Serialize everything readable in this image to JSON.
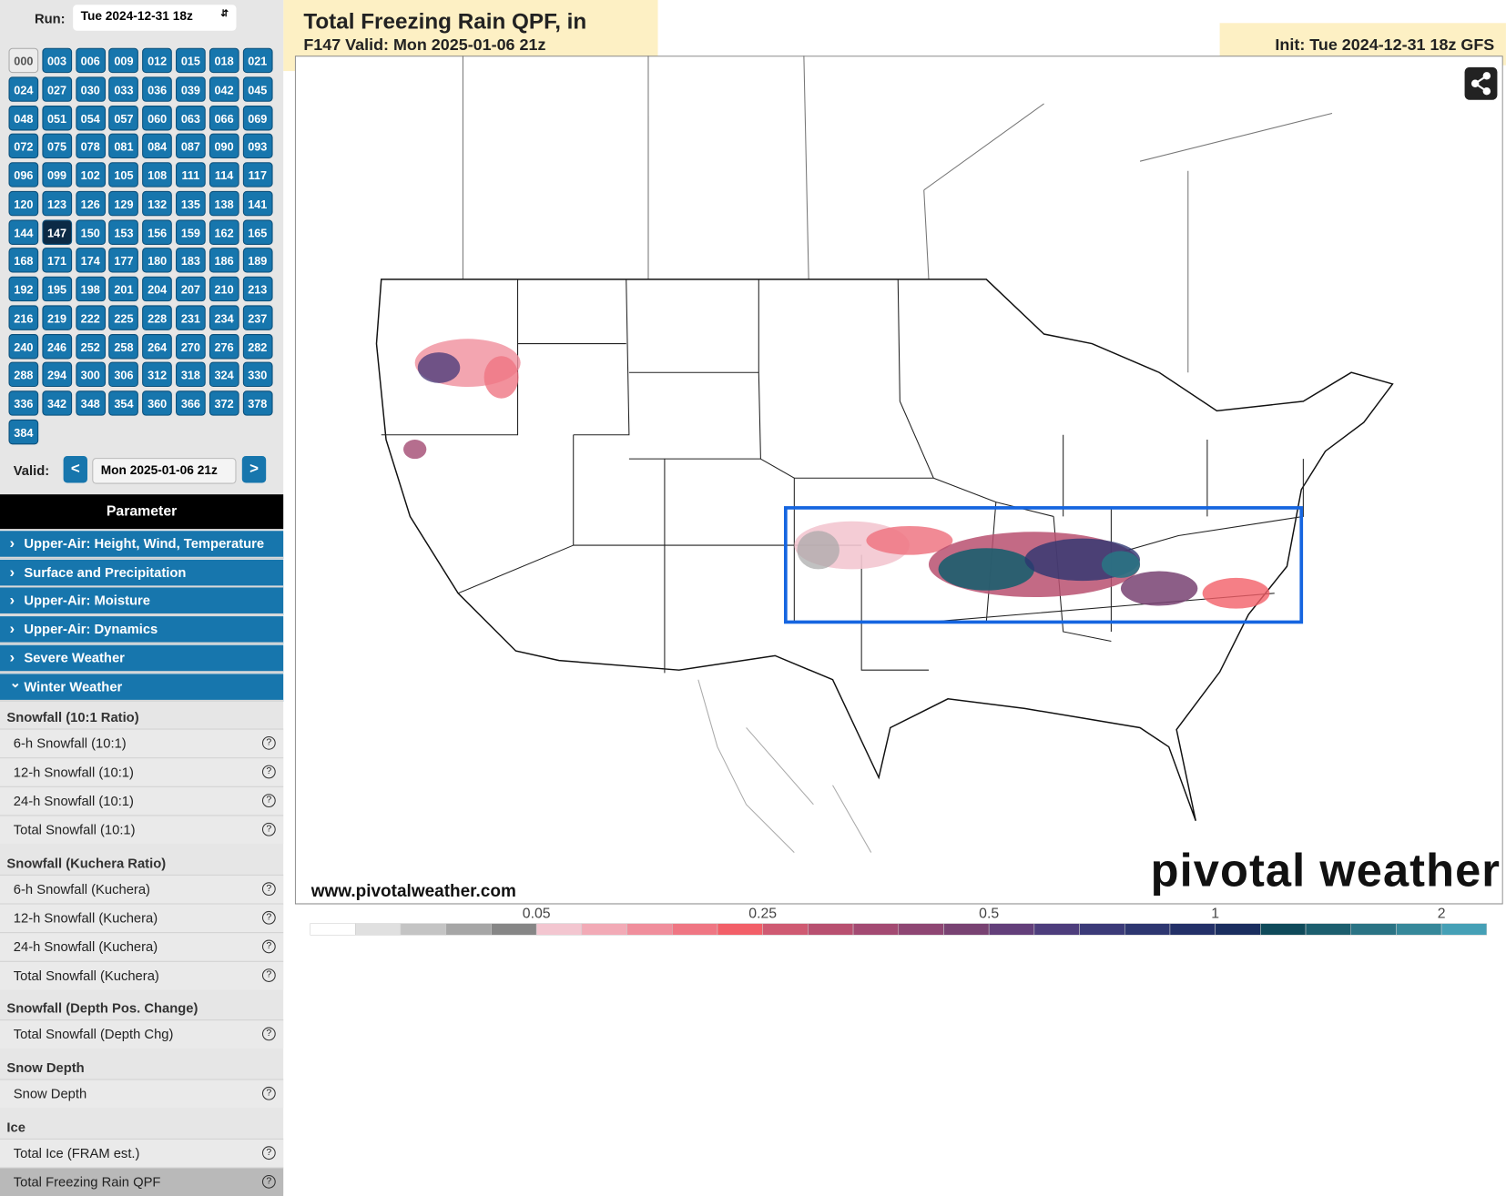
{
  "run_selector": {
    "label": "Run:",
    "value": "Tue 2024-12-31 18z"
  },
  "forecast_hours": {
    "hours": [
      "000",
      "003",
      "006",
      "009",
      "012",
      "015",
      "018",
      "021",
      "024",
      "027",
      "030",
      "033",
      "036",
      "039",
      "042",
      "045",
      "048",
      "051",
      "054",
      "057",
      "060",
      "063",
      "066",
      "069",
      "072",
      "075",
      "078",
      "081",
      "084",
      "087",
      "090",
      "093",
      "096",
      "099",
      "102",
      "105",
      "108",
      "111",
      "114",
      "117",
      "120",
      "123",
      "126",
      "129",
      "132",
      "135",
      "138",
      "141",
      "144",
      "147",
      "150",
      "153",
      "156",
      "159",
      "162",
      "165",
      "168",
      "171",
      "174",
      "177",
      "180",
      "183",
      "186",
      "189",
      "192",
      "195",
      "198",
      "201",
      "204",
      "207",
      "210",
      "213",
      "216",
      "219",
      "222",
      "225",
      "228",
      "231",
      "234",
      "237",
      "240",
      "246",
      "252",
      "258",
      "264",
      "270",
      "276",
      "282",
      "288",
      "294",
      "300",
      "306",
      "312",
      "318",
      "324",
      "330",
      "336",
      "342",
      "348",
      "354",
      "360",
      "366",
      "372",
      "378",
      "384"
    ],
    "selected": "147",
    "unavailable": [
      "000"
    ]
  },
  "valid_nav": {
    "label": "Valid:",
    "prev": "<",
    "value": "Mon 2025-01-06 21z",
    "next": ">"
  },
  "parameters": {
    "title": "Parameter",
    "categories": [
      {
        "name": "Upper-Air: Height, Wind, Temperature",
        "expanded": false
      },
      {
        "name": "Surface and Precipitation",
        "expanded": false
      },
      {
        "name": "Upper-Air: Moisture",
        "expanded": false
      },
      {
        "name": "Upper-Air: Dynamics",
        "expanded": false
      },
      {
        "name": "Severe Weather",
        "expanded": false
      },
      {
        "name": "Winter Weather",
        "expanded": true
      }
    ],
    "groups": [
      {
        "title": "Snowfall (10:1 Ratio)",
        "items": [
          "6-h Snowfall (10:1)",
          "12-h Snowfall (10:1)",
          "24-h Snowfall (10:1)",
          "Total Snowfall (10:1)"
        ]
      },
      {
        "title": "Snowfall (Kuchera Ratio)",
        "items": [
          "6-h Snowfall (Kuchera)",
          "12-h Snowfall (Kuchera)",
          "24-h Snowfall (Kuchera)",
          "Total Snowfall (Kuchera)"
        ]
      },
      {
        "title": "Snowfall (Depth Pos. Change)",
        "items": [
          "Total Snowfall (Depth Chg)"
        ]
      },
      {
        "title": "Snow Depth",
        "items": [
          "Snow Depth"
        ]
      },
      {
        "title": "Ice",
        "items": [
          "Total Ice (FRAM est.)",
          "Total Freezing Rain QPF"
        ]
      }
    ],
    "help_icon": "?",
    "selected_item": "Total Freezing Rain QPF"
  },
  "map": {
    "title": "Total Freezing Rain QPF, in",
    "valid": "F147 Valid: Mon 2025-01-06 21z",
    "init": "Init: Tue 2024-12-31 18z GFS",
    "watermark": "www.pivotalweather.com",
    "brand": "pivotal weather",
    "legend": {
      "labels": [
        "0.05",
        "0.25",
        "0.5",
        "1",
        "2"
      ],
      "colors": [
        "#ffffff",
        "#e0e0e0",
        "#c4c4c4",
        "#a6a6a6",
        "#868686",
        "#f3c6d0",
        "#f2aab6",
        "#f08e9c",
        "#ef7683",
        "#f25f68",
        "#cf5a72",
        "#b85070",
        "#a34a72",
        "#8e4673",
        "#784272",
        "#633f7a",
        "#4d3d7c",
        "#3b3a78",
        "#2d3670",
        "#233068",
        "#1a2e5f",
        "#0f4a5a",
        "#1c5e6e",
        "#2a7384",
        "#36889a",
        "#45a0b6"
      ]
    }
  }
}
